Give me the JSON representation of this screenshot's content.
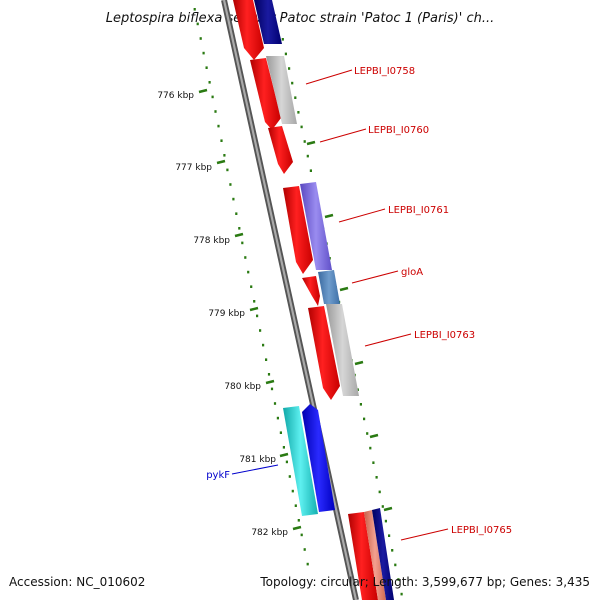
{
  "title": "Leptospira biflexa serovar Patoc strain 'Patoc 1 (Paris)' ch...",
  "footer": {
    "accession": "Accession: NC_010602",
    "summary": "Topology: circular; Length: 3,599,677 bp; Genes: 3,435"
  },
  "ticks": [
    {
      "label": "776 kbp"
    },
    {
      "label": "777 kbp"
    },
    {
      "label": "778 kbp"
    },
    {
      "label": "779 kbp"
    },
    {
      "label": "780 kbp"
    },
    {
      "label": "781 kbp"
    },
    {
      "label": "782 kbp"
    }
  ],
  "gene_labels": [
    {
      "text": "LEPBI_I0758",
      "color": "#cc0000"
    },
    {
      "text": "LEPBI_I0760",
      "color": "#cc0000"
    },
    {
      "text": "LEPBI_I0761",
      "color": "#cc0000"
    },
    {
      "text": "gloA",
      "color": "#cc0000"
    },
    {
      "text": "LEPBI_I0763",
      "color": "#cc0000"
    },
    {
      "text": "pykF",
      "color": "#0000cc"
    },
    {
      "text": "LEPBI_I0765",
      "color": "#cc0000"
    }
  ],
  "colors": {
    "backbone": "#888888",
    "cds_forward": "#ee0000",
    "cds_reverse": "#0000ee",
    "tick": "#2a7a12",
    "navy": "#000080",
    "grey": "#bbbbbb",
    "purple": "#7a68d8",
    "steelblue": "#4f7fb5",
    "cyan": "#22c4c4",
    "salmon": "#e8826c"
  }
}
